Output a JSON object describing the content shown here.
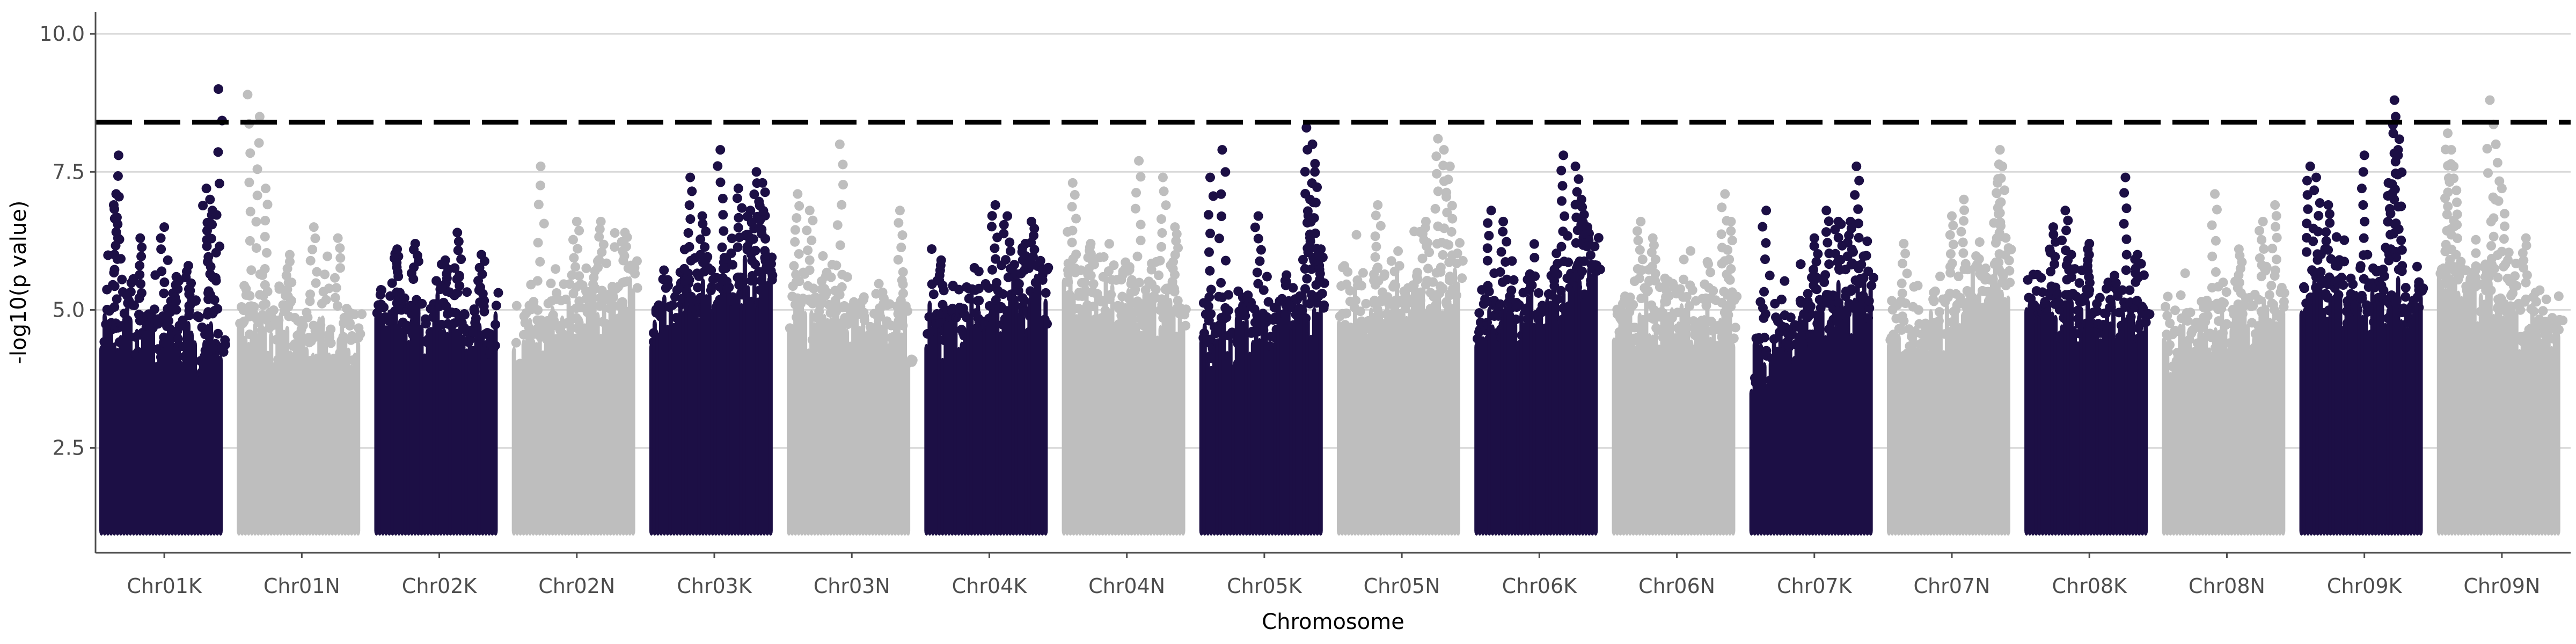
{
  "chart_data": {
    "type": "scatter",
    "subtype": "manhattan",
    "title": "",
    "xlabel": "Chromosome",
    "ylabel": "-log10(p value)",
    "ylim": [
      0.6,
      10.4
    ],
    "yticks": [
      2.5,
      5.0,
      7.5,
      10.0
    ],
    "ytick_labels": [
      "2.5",
      "5.0",
      "7.5",
      "10.0"
    ],
    "grid": "horizontal major",
    "threshold": 8.4,
    "threshold_style": "dashed",
    "colors": {
      "odd": "#1c0f45",
      "even": "#bebebe",
      "threshold": "#000000",
      "grid": "#d9d9d9",
      "axis": "#4d4d4d"
    },
    "min_point_value": 1.0,
    "categories": [
      "Chr01K",
      "Chr01N",
      "Chr02K",
      "Chr02N",
      "Chr03K",
      "Chr03N",
      "Chr04K",
      "Chr04N",
      "Chr05K",
      "Chr05N",
      "Chr06K",
      "Chr06N",
      "Chr07K",
      "Chr07N",
      "Chr08K",
      "Chr08N",
      "Chr09K",
      "Chr09N"
    ],
    "series": [
      {
        "chromosome": "Chr01K",
        "color": "odd",
        "dense_top_start": 5.2,
        "dense_top_end": 5.0,
        "peaks": [
          [
            0.12,
            7.8
          ],
          [
            0.1,
            7.1
          ],
          [
            0.08,
            6.9
          ],
          [
            0.3,
            6.3
          ],
          [
            0.5,
            6.5
          ],
          [
            0.85,
            7.2
          ],
          [
            0.88,
            7.0
          ],
          [
            0.9,
            6.8
          ],
          [
            0.6,
            5.6
          ],
          [
            0.95,
            9.0
          ],
          [
            0.7,
            5.8
          ]
        ]
      },
      {
        "chromosome": "Chr01N",
        "color": "even",
        "dense_top_start": 5.2,
        "dense_top_end": 5.0,
        "peaks": [
          [
            0.05,
            8.9
          ],
          [
            0.15,
            8.5
          ],
          [
            0.2,
            7.2
          ],
          [
            0.6,
            6.5
          ],
          [
            0.8,
            6.3
          ],
          [
            0.4,
            6.0
          ]
        ]
      },
      {
        "chromosome": "Chr02K",
        "color": "odd",
        "dense_top_start": 5.6,
        "dense_top_end": 5.1,
        "peaks": [
          [
            0.15,
            6.1
          ],
          [
            0.3,
            6.2
          ],
          [
            0.55,
            5.9
          ],
          [
            0.65,
            6.4
          ],
          [
            0.85,
            6.0
          ]
        ]
      },
      {
        "chromosome": "Chr02N",
        "color": "even",
        "dense_top_start": 5.0,
        "dense_top_end": 5.9,
        "peaks": [
          [
            0.2,
            7.6
          ],
          [
            0.5,
            6.6
          ],
          [
            0.7,
            6.6
          ],
          [
            0.9,
            6.4
          ]
        ]
      },
      {
        "chromosome": "Chr03K",
        "color": "odd",
        "dense_top_start": 5.4,
        "dense_top_end": 6.2,
        "peaks": [
          [
            0.3,
            7.4
          ],
          [
            0.4,
            6.7
          ],
          [
            0.55,
            7.9
          ],
          [
            0.7,
            7.2
          ],
          [
            0.8,
            6.8
          ],
          [
            0.85,
            7.5
          ],
          [
            0.9,
            7.3
          ]
        ]
      },
      {
        "chromosome": "Chr03N",
        "color": "even",
        "dense_top_start": 5.6,
        "dense_top_end": 5.2,
        "peaks": [
          [
            0.05,
            7.1
          ],
          [
            0.15,
            6.8
          ],
          [
            0.4,
            8.0
          ],
          [
            0.9,
            6.8
          ]
        ]
      },
      {
        "chromosome": "Chr04K",
        "color": "odd",
        "dense_top_start": 5.2,
        "dense_top_end": 5.8,
        "peaks": [
          [
            0.1,
            5.9
          ],
          [
            0.55,
            6.9
          ],
          [
            0.65,
            6.7
          ],
          [
            0.8,
            6.2
          ],
          [
            0.85,
            6.6
          ]
        ]
      },
      {
        "chromosome": "Chr04N",
        "color": "even",
        "dense_top_start": 5.8,
        "dense_top_end": 5.6,
        "peaks": [
          [
            0.05,
            7.3
          ],
          [
            0.2,
            6.2
          ],
          [
            0.6,
            7.7
          ],
          [
            0.8,
            7.4
          ],
          [
            0.9,
            6.5
          ]
        ]
      },
      {
        "chromosome": "Chr05K",
        "color": "odd",
        "dense_top_start": 5.0,
        "dense_top_end": 5.6,
        "peaks": [
          [
            0.05,
            7.4
          ],
          [
            0.15,
            7.9
          ],
          [
            0.45,
            6.7
          ],
          [
            0.85,
            8.3
          ],
          [
            0.9,
            8.0
          ],
          [
            0.88,
            7.0
          ],
          [
            0.92,
            7.5
          ],
          [
            0.97,
            6.1
          ]
        ]
      },
      {
        "chromosome": "Chr05N",
        "color": "even",
        "dense_top_start": 5.4,
        "dense_top_end": 6.0,
        "peaks": [
          [
            0.3,
            6.9
          ],
          [
            0.8,
            8.1
          ],
          [
            0.85,
            7.9
          ],
          [
            0.9,
            7.6
          ],
          [
            0.7,
            6.6
          ]
        ]
      },
      {
        "chromosome": "Chr06K",
        "color": "odd",
        "dense_top_start": 5.1,
        "dense_top_end": 6.2,
        "peaks": [
          [
            0.1,
            6.8
          ],
          [
            0.2,
            6.6
          ],
          [
            0.7,
            7.8
          ],
          [
            0.8,
            7.6
          ],
          [
            0.85,
            7.0
          ],
          [
            0.9,
            6.5
          ]
        ]
      },
      {
        "chromosome": "Chr06N",
        "color": "even",
        "dense_top_start": 5.4,
        "dense_top_end": 5.4,
        "peaks": [
          [
            0.2,
            6.6
          ],
          [
            0.3,
            6.3
          ],
          [
            0.9,
            7.1
          ],
          [
            0.95,
            6.6
          ]
        ]
      },
      {
        "chromosome": "Chr07K",
        "color": "odd",
        "dense_top_start": 4.6,
        "dense_top_end": 6.0,
        "peaks": [
          [
            0.1,
            6.8
          ],
          [
            0.5,
            6.3
          ],
          [
            0.6,
            6.8
          ],
          [
            0.7,
            6.6
          ],
          [
            0.85,
            7.6
          ],
          [
            0.8,
            6.6
          ]
        ]
      },
      {
        "chromosome": "Chr07N",
        "color": "even",
        "dense_top_start": 4.8,
        "dense_top_end": 6.2,
        "peaks": [
          [
            0.1,
            6.2
          ],
          [
            0.5,
            6.7
          ],
          [
            0.6,
            7.0
          ],
          [
            0.9,
            7.9
          ],
          [
            0.92,
            7.6
          ],
          [
            0.88,
            7.3
          ]
        ]
      },
      {
        "chromosome": "Chr08K",
        "color": "odd",
        "dense_top_start": 5.6,
        "dense_top_end": 5.4,
        "peaks": [
          [
            0.2,
            6.5
          ],
          [
            0.3,
            6.8
          ],
          [
            0.5,
            6.2
          ],
          [
            0.8,
            7.4
          ],
          [
            0.9,
            6.0
          ]
        ]
      },
      {
        "chromosome": "Chr08N",
        "color": "even",
        "dense_top_start": 4.8,
        "dense_top_end": 5.6,
        "peaks": [
          [
            0.4,
            7.1
          ],
          [
            0.6,
            6.1
          ],
          [
            0.8,
            6.6
          ],
          [
            0.9,
            6.9
          ]
        ]
      },
      {
        "chromosome": "Chr09K",
        "color": "odd",
        "dense_top_start": 5.8,
        "dense_top_end": 5.6,
        "peaks": [
          [
            0.05,
            7.6
          ],
          [
            0.1,
            7.4
          ],
          [
            0.2,
            6.9
          ],
          [
            0.5,
            7.8
          ],
          [
            0.75,
            8.8
          ],
          [
            0.76,
            8.5
          ],
          [
            0.74,
            8.2
          ],
          [
            0.78,
            7.8
          ],
          [
            0.7,
            7.3
          ]
        ]
      },
      {
        "chromosome": "Chr09N",
        "color": "even",
        "dense_top_start": 6.2,
        "dense_top_end": 5.0,
        "peaks": [
          [
            0.05,
            8.2
          ],
          [
            0.08,
            7.9
          ],
          [
            0.1,
            7.6
          ],
          [
            0.4,
            8.8
          ],
          [
            0.45,
            8.0
          ],
          [
            0.5,
            7.2
          ],
          [
            0.7,
            6.3
          ]
        ]
      }
    ]
  }
}
